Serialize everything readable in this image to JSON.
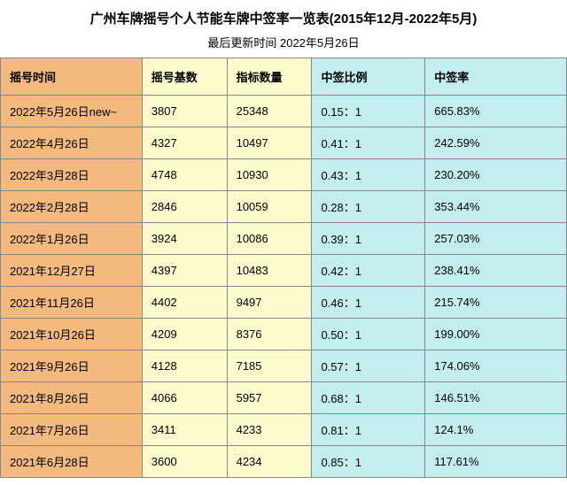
{
  "title": "广州车牌摇号个人节能车牌中签率一览表(2015年12月-2022年5月)",
  "subtitle": "最后更新时间 2022年5月26日",
  "columns": {
    "date": "摇号时间",
    "base": "摇号基数",
    "quota": "指标数量",
    "ratio": "中签比例",
    "rate": "中签率"
  },
  "rows": [
    {
      "date": "2022年5月26日new~",
      "base": "3807",
      "quota": "25348",
      "ratio": "0.15：1",
      "rate": "665.83%"
    },
    {
      "date": "2022年4月26日",
      "base": "4327",
      "quota": "10497",
      "ratio": "0.41：1",
      "rate": "242.59%"
    },
    {
      "date": "2022年3月28日",
      "base": "4748",
      "quota": "10930",
      "ratio": "0.43：1",
      "rate": "230.20%"
    },
    {
      "date": "2022年2月28日",
      "base": "2846",
      "quota": "10059",
      "ratio": "0.28：1",
      "rate": "353.44%"
    },
    {
      "date": "2022年1月26日",
      "base": "3924",
      "quota": "10086",
      "ratio": "0.39：1",
      "rate": "257.03%"
    },
    {
      "date": "2021年12月27日",
      "base": "4397",
      "quota": "10483",
      "ratio": "0.42：1",
      "rate": "238.41%"
    },
    {
      "date": "2021年11月26日",
      "base": "4402",
      "quota": "9497",
      "ratio": "0.46：1",
      "rate": "215.74%"
    },
    {
      "date": "2021年10月26日",
      "base": "4209",
      "quota": "8376",
      "ratio": "0.50：1",
      "rate": "199.00%"
    },
    {
      "date": "2021年9月26日",
      "base": "4128",
      "quota": "7185",
      "ratio": "0.57：1",
      "rate": "174.06%"
    },
    {
      "date": "2021年8月26日",
      "base": "4066",
      "quota": "5957",
      "ratio": "0.68：1",
      "rate": "146.51%"
    },
    {
      "date": "2021年7月26日",
      "base": "3411",
      "quota": "4233",
      "ratio": "0.81：1",
      "rate": "124.1%"
    },
    {
      "date": "2021年6月28日",
      "base": "3600",
      "quota": "4234",
      "ratio": "0.85：1",
      "rate": "117.61%"
    }
  ],
  "colors": {
    "orange": "#f4b97f",
    "yellow": "#fcfbce",
    "cyan": "#c3edef",
    "border": "#888888"
  }
}
